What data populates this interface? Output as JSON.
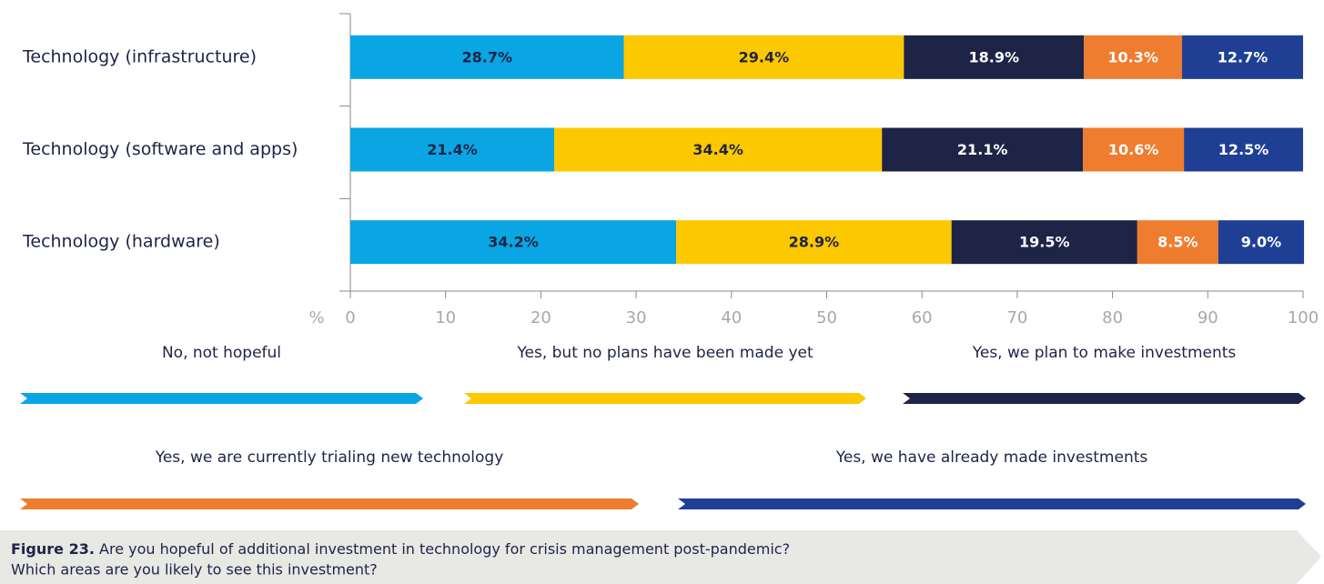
{
  "chart_data": {
    "type": "bar",
    "orientation": "horizontal",
    "stacked": true,
    "categories": [
      "Technology (infrastructure)",
      "Technology (software and apps)",
      "Technology (hardware)"
    ],
    "series": [
      {
        "name": "No, not hopeful",
        "color": "#0aa5e3",
        "values": [
          28.7,
          21.4,
          34.2
        ],
        "value_labels": [
          "28.7%",
          "21.4%",
          "34.2%"
        ]
      },
      {
        "name": "Yes, but no plans have been made yet",
        "color": "#fcc800",
        "values": [
          29.4,
          34.4,
          28.9
        ],
        "value_labels": [
          "29.4%",
          "34.4%",
          "28.9%"
        ]
      },
      {
        "name": "Yes, we plan to make investments",
        "color": "#1e2446",
        "values": [
          18.9,
          21.1,
          19.5
        ],
        "value_labels": [
          "18.9%",
          "21.1%",
          "19.5%"
        ]
      },
      {
        "name": "Yes, we are currently trialing new technology",
        "color": "#ee7d2f",
        "values": [
          10.3,
          10.6,
          8.5
        ],
        "value_labels": [
          "10.3%",
          "10.6%",
          "8.5%"
        ]
      },
      {
        "name": "Yes, we have already made investments",
        "color": "#1e3f94",
        "values": [
          12.7,
          12.5,
          9.0
        ],
        "value_labels": [
          "12.7%",
          "12.5%",
          "9.0%"
        ]
      }
    ],
    "xlabel": "%",
    "xlim": [
      0,
      100
    ],
    "xticks": [
      0,
      10,
      20,
      30,
      40,
      50,
      60,
      70,
      80,
      90,
      100
    ],
    "caption_label": "Figure 23.",
    "caption": [
      "Are you hopeful of additional investment in technology for crisis management post-pandemic?",
      "Which areas are you likely to see this investment?"
    ]
  }
}
